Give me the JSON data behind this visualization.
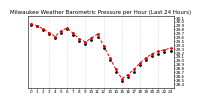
{
  "title": "Milwaukee Weather Barometric Pressure per Hour (Last 24 Hours)",
  "hours": [
    0,
    1,
    2,
    3,
    4,
    5,
    6,
    7,
    8,
    9,
    10,
    11,
    12,
    13,
    14,
    15,
    16,
    17,
    18,
    19,
    20,
    21,
    22,
    23
  ],
  "pressure1": [
    29.92,
    29.88,
    29.78,
    29.68,
    29.58,
    29.72,
    29.8,
    29.65,
    29.5,
    29.42,
    29.52,
    29.62,
    29.32,
    29.02,
    28.72,
    28.48,
    28.58,
    28.72,
    28.88,
    29.02,
    29.12,
    29.18,
    29.22,
    29.26
  ],
  "pressure2": [
    29.95,
    29.9,
    29.82,
    29.72,
    29.62,
    29.76,
    29.84,
    29.7,
    29.56,
    29.48,
    29.58,
    29.68,
    29.38,
    29.08,
    28.78,
    28.54,
    28.64,
    28.78,
    28.94,
    29.08,
    29.18,
    29.24,
    29.28,
    29.32
  ],
  "ylim": [
    28.3,
    30.15
  ],
  "ytick_values": [
    30.1,
    30.0,
    29.9,
    29.8,
    29.7,
    29.6,
    29.5,
    29.4,
    29.3,
    29.2,
    29.1,
    29.0,
    28.9,
    28.8,
    28.7,
    28.6,
    28.5,
    28.4
  ],
  "ytick_labels": [
    "30.1",
    "30.0",
    "29.9",
    "29.8",
    "29.7",
    "29.6",
    "29.5",
    "29.4",
    "29.3",
    "29.2",
    "29.1",
    "29.0",
    "28.9",
    "28.8",
    "28.7",
    "28.6",
    "28.5",
    "28.4"
  ],
  "color1": "#000000",
  "color2": "#dd0000",
  "bg_color": "#ffffff",
  "grid_color": "#bbbbbb",
  "title_fontsize": 4.0,
  "tick_fontsize": 3.0,
  "linewidth": 0.7,
  "markersize": 2.0
}
